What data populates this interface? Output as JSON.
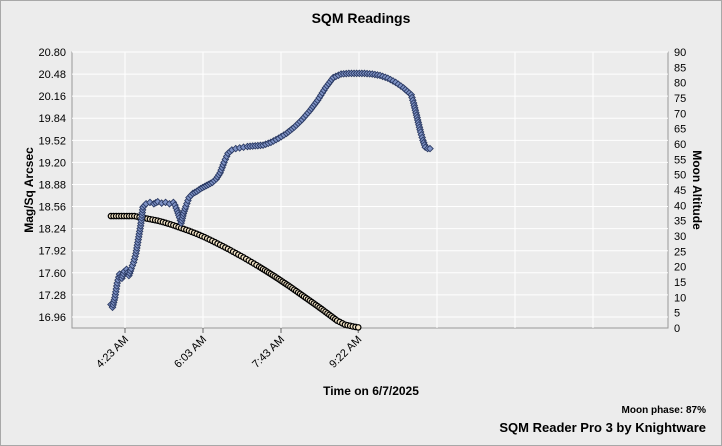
{
  "chart_data": {
    "type": "scatter",
    "title": "SQM Readings",
    "xlabel": "Time on 6/7/2025",
    "ylabel": "Mag/Sq Arcsec",
    "y2label": "Moon Altitude",
    "x_ticks": [
      "4:23 AM",
      "6:03 AM",
      "7:43 AM",
      "9:22 AM"
    ],
    "y_ticks": [
      "20.80",
      "20.48",
      "20.16",
      "19.84",
      "19.52",
      "19.20",
      "18.88",
      "18.56",
      "18.24",
      "17.92",
      "17.60",
      "17.28",
      "16.96"
    ],
    "y2_ticks": [
      "90",
      "85",
      "80",
      "75",
      "70",
      "65",
      "60",
      "55",
      "50",
      "45",
      "40",
      "35",
      "30",
      "25",
      "20",
      "15",
      "10",
      "5",
      "0"
    ],
    "ylim": [
      16.8,
      20.8
    ],
    "y2lim": [
      0,
      90
    ],
    "grid": true,
    "colors": {
      "sqm_fill": "#7f93c6",
      "sqm_stroke": "#2b3a63",
      "moon_fill": "#f5e6c8",
      "moon_stroke": "#000000",
      "grid": "#ffffff",
      "plot_bg": "#ececec"
    },
    "series": [
      {
        "marker": "diamond",
        "axis": "left",
        "x": [
          "4:05 AM",
          "4:07 AM",
          "4:10 AM",
          "4:13 AM",
          "4:16 AM",
          "4:19 AM",
          "4:22 AM",
          "4:25 AM",
          "4:28 AM",
          "4:31 AM",
          "4:34 AM",
          "4:37 AM",
          "4:40 AM",
          "4:43 AM",
          "4:46 AM",
          "4:50 AM",
          "4:55 AM",
          "5:00 AM",
          "5:05 AM",
          "5:10 AM",
          "5:15 AM",
          "5:20 AM",
          "5:25 AM",
          "5:27 AM",
          "5:30 AM",
          "5:33 AM",
          "5:35 AM",
          "5:38 AM",
          "5:41 AM",
          "5:45 AM",
          "5:50 AM",
          "5:55 AM",
          "6:00 AM",
          "6:05 AM",
          "6:10 AM",
          "6:15 AM",
          "6:20 AM",
          "6:25 AM",
          "6:30 AM",
          "6:35 AM",
          "6:40 AM",
          "6:45 AM",
          "6:50 AM",
          "6:55 AM",
          "7:00 AM",
          "7:10 AM",
          "7:20 AM",
          "7:30 AM",
          "7:40 AM",
          "7:50 AM",
          "8:00 AM",
          "8:10 AM",
          "8:20 AM",
          "8:30 AM",
          "8:40 AM",
          "8:50 AM",
          "9:00 AM",
          "9:10 AM",
          "9:20 AM",
          "9:30 AM",
          "9:40 AM",
          "9:50 AM",
          "10:00 AM",
          "10:10 AM",
          "10:20 AM",
          "10:30 AM",
          "10:33 AM",
          "10:36 AM",
          "10:39 AM",
          "10:42 AM",
          "10:45 AM",
          "10:48 AM",
          "10:51 AM",
          "10:54 AM"
        ],
        "y": [
          17.14,
          17.1,
          17.24,
          17.45,
          17.58,
          17.52,
          17.62,
          17.65,
          17.56,
          17.66,
          17.75,
          17.88,
          18.08,
          18.28,
          18.55,
          18.6,
          18.62,
          18.6,
          18.63,
          18.61,
          18.62,
          18.6,
          18.62,
          18.58,
          18.5,
          18.4,
          18.32,
          18.46,
          18.56,
          18.69,
          18.75,
          18.78,
          18.82,
          18.85,
          18.88,
          18.91,
          18.96,
          19.05,
          19.2,
          19.33,
          19.38,
          19.4,
          19.41,
          19.42,
          19.43,
          19.44,
          19.45,
          19.49,
          19.55,
          19.62,
          19.71,
          19.82,
          19.95,
          20.1,
          20.28,
          20.43,
          20.48,
          20.49,
          20.49,
          20.49,
          20.48,
          20.46,
          20.42,
          20.36,
          20.28,
          20.18,
          20.06,
          19.92,
          19.78,
          19.64,
          19.52,
          19.42,
          19.4,
          19.4
        ]
      },
      {
        "marker": "circle",
        "axis": "right",
        "x": [
          "4:05 AM",
          "4:15 AM",
          "4:25 AM",
          "4:35 AM",
          "4:45 AM",
          "4:55 AM",
          "5:05 AM",
          "5:15 AM",
          "5:25 AM",
          "5:35 AM",
          "5:45 AM",
          "5:55 AM",
          "6:05 AM",
          "6:15 AM",
          "6:25 AM",
          "6:35 AM",
          "6:45 AM",
          "6:55 AM",
          "7:05 AM",
          "7:15 AM",
          "7:25 AM",
          "7:35 AM",
          "7:45 AM",
          "7:55 AM",
          "8:05 AM",
          "8:15 AM",
          "8:25 AM",
          "8:35 AM",
          "8:45 AM",
          "8:55 AM",
          "9:05 AM",
          "9:15 AM",
          "9:22 AM"
        ],
        "y": [
          36.5,
          36.5,
          36.5,
          36.5,
          36.0,
          35.5,
          35.0,
          34.3,
          33.5,
          32.6,
          31.7,
          30.7,
          29.6,
          28.4,
          27.1,
          25.8,
          24.4,
          23.0,
          21.5,
          20.0,
          18.4,
          16.8,
          15.1,
          13.4,
          11.6,
          9.8,
          8.0,
          6.2,
          4.3,
          2.4,
          1.1,
          0.5,
          0.2
        ]
      }
    ]
  },
  "footer": {
    "moon_phase": "Moon phase: 87%",
    "credit": "SQM Reader Pro 3 by Knightware"
  }
}
